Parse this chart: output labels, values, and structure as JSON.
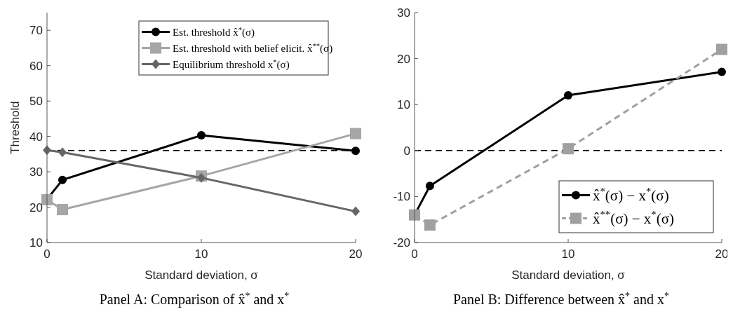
{
  "chart_data": [
    {
      "type": "line",
      "title": "Panel A: Comparison of x̂$^{*}$ and x$^{*}$",
      "xlabel": "Standard deviation, σ",
      "ylabel": "Threshold",
      "x": [
        0,
        1,
        10,
        20
      ],
      "xlim": [
        0,
        20
      ],
      "xticks": [
        0,
        10,
        20
      ],
      "ylim": [
        10,
        75
      ],
      "yticks": [
        10,
        20,
        30,
        40,
        50,
        60,
        70
      ],
      "legend": "top",
      "grid": false,
      "series": [
        {
          "name": "Est. threshold x̂$^{*}$(σ)",
          "color": "#000000",
          "marker": "circle",
          "values": [
            22.2,
            27.7,
            40.3,
            35.9
          ]
        },
        {
          "name": "Est. threshold with belief elicit. x̂$^{**}$(σ)",
          "color": "#a6a6a6",
          "marker": "square",
          "values": [
            22.1,
            19.3,
            28.8,
            40.8
          ]
        },
        {
          "name": "Equilibrium threshold x$^{*}$(σ)",
          "color": "#666666",
          "marker": "diamond",
          "values": [
            36.1,
            35.5,
            28.3,
            18.8
          ]
        }
      ],
      "ref_lines": [
        {
          "axis": "y",
          "value": 36,
          "color": "#000000",
          "line_style": "dashed"
        }
      ]
    },
    {
      "type": "line",
      "title": "Panel B: Difference between x̂$^{*}$ and x$^{*}$",
      "xlabel": "Standard deviation, σ",
      "x": [
        0,
        1,
        10,
        20
      ],
      "xlim": [
        0,
        20
      ],
      "xticks": [
        0,
        10,
        20
      ],
      "ylim": [
        -20,
        30
      ],
      "yticks": [
        -20,
        -10,
        0,
        10,
        20,
        30
      ],
      "legend": "bottom right",
      "grid": false,
      "series": [
        {
          "name": "x̂$^{*}$(σ) − x$^{*}$(σ)",
          "color": "#000000",
          "marker": "circle",
          "line_style": "solid",
          "values": [
            -14,
            -7.7,
            12,
            17.1
          ]
        },
        {
          "name": "x̂$^{**}$(σ) − x$^{*}$(σ)",
          "color": "#a0a0a0",
          "marker": "square",
          "line_style": "dashed",
          "values": [
            -14,
            -16.2,
            0.4,
            22
          ]
        }
      ],
      "ref_lines": [
        {
          "axis": "y",
          "value": 0,
          "color": "#000000",
          "line_style": "dashed"
        }
      ]
    }
  ]
}
